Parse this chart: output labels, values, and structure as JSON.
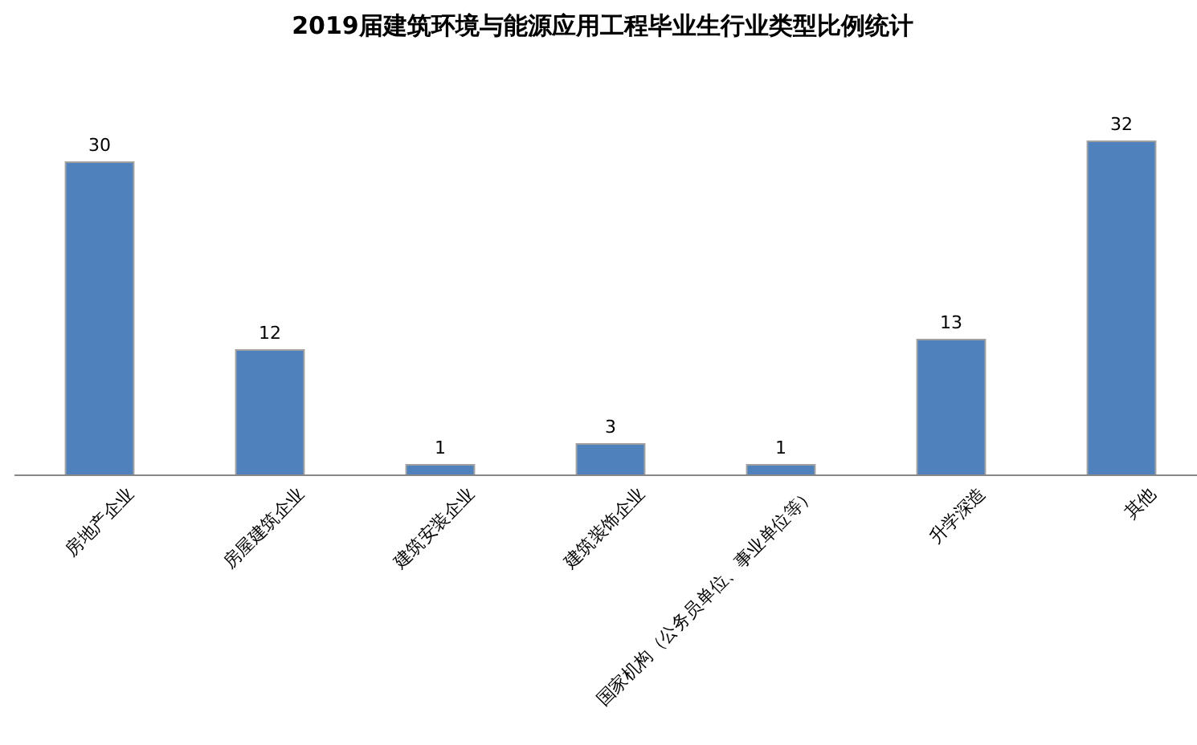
{
  "chart_data": {
    "type": "bar",
    "title": "2019届建筑环境与能源应用工程毕业生行业类型比例统计",
    "categories": [
      "房地产企业",
      "房屋建筑企业",
      "建筑安装企业",
      "建筑装饰企业",
      "国家机构（公务员单位、事业单位等）",
      "升学深造",
      "其他"
    ],
    "values": [
      30,
      12,
      1,
      3,
      1,
      13,
      32
    ],
    "color": "#4f81bd",
    "data_labels": true
  }
}
